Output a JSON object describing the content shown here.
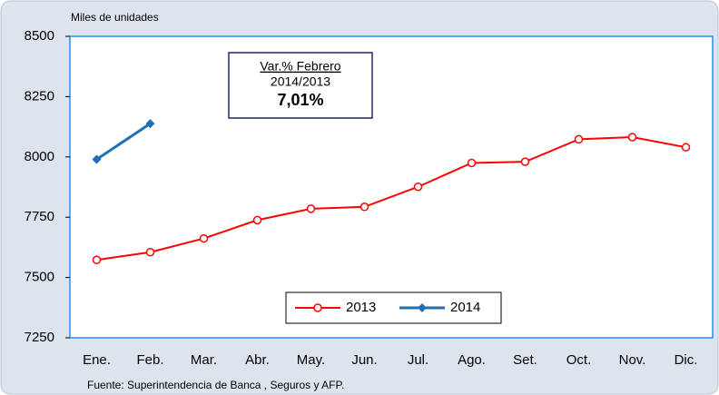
{
  "chart_data": {
    "type": "line",
    "y_label": "Miles de unidades",
    "categories": [
      "Ene.",
      "Feb.",
      "Mar.",
      "Abr.",
      "May.",
      "Jun.",
      "Jul.",
      "Ago.",
      "Set.",
      "Oct.",
      "Nov.",
      "Dic."
    ],
    "series": [
      {
        "name": "2013",
        "color": "#ff0000",
        "marker": "circle",
        "values": [
          7573,
          7605,
          7662,
          7738,
          7785,
          7793,
          7876,
          7975,
          7980,
          8073,
          8082,
          8040
        ]
      },
      {
        "name": "2014",
        "color": "#1f6fb5",
        "marker": "diamond",
        "values": [
          7990,
          8138,
          null,
          null,
          null,
          null,
          null,
          null,
          null,
          null,
          null,
          null
        ]
      }
    ],
    "ylim": [
      7250,
      8500
    ],
    "yticks": [
      7250,
      7500,
      7750,
      8000,
      8250,
      8500
    ],
    "annotation": {
      "line1": "Var.% Febrero",
      "line2": "2014/2013",
      "line3": "7,01%"
    },
    "legend": "bottom",
    "source": "Fuente: Superintendencia de Banca , Seguros y AFP."
  }
}
